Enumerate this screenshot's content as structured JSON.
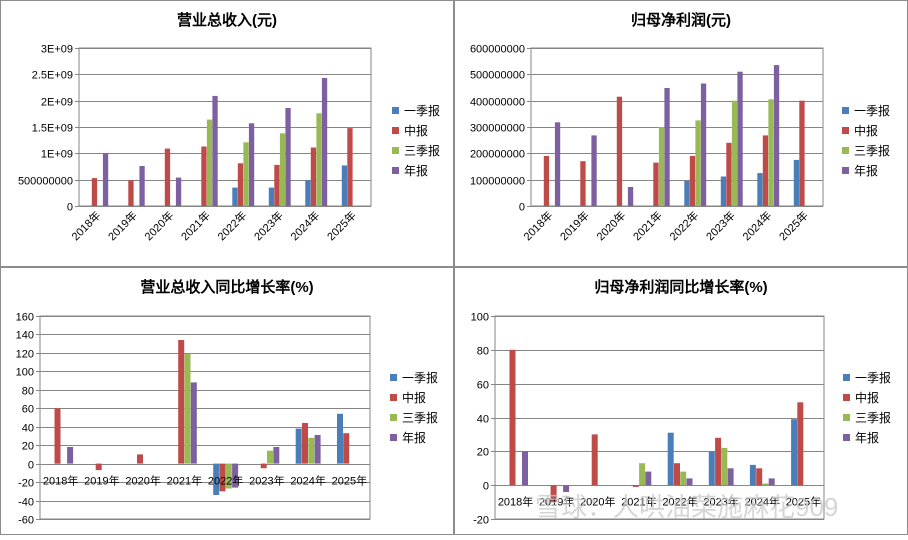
{
  "legend": {
    "labels": [
      "一季报",
      "中报",
      "三季报",
      "年报"
    ],
    "colors": [
      "#4a7ebb",
      "#be4b48",
      "#98b954",
      "#7d60a0"
    ]
  },
  "watermark": "雪球：人哄油菜施麻花909",
  "chart_data": [
    {
      "type": "bar",
      "title": "营业总收入(元)",
      "categories": [
        "2018年",
        "2019年",
        "2020年",
        "2021年",
        "2022年",
        "2023年",
        "2024年",
        "2025年"
      ],
      "yticks": [
        "0",
        "500000000",
        "1E+09",
        "1.5E+09",
        "2E+09",
        "2.5E+09",
        "3E+09"
      ],
      "ylim": [
        0,
        3000000000
      ],
      "series": [
        {
          "name": "一季报",
          "values": [
            null,
            null,
            null,
            null,
            350000000,
            350000000,
            490000000,
            770000000
          ]
        },
        {
          "name": "中报",
          "values": [
            530000000,
            490000000,
            1090000000,
            1130000000,
            810000000,
            780000000,
            1110000000,
            1480000000
          ]
        },
        {
          "name": "三季报",
          "values": [
            null,
            null,
            null,
            1640000000,
            1210000000,
            1380000000,
            1760000000,
            null
          ]
        },
        {
          "name": "年报",
          "values": [
            1000000000,
            760000000,
            540000000,
            2090000000,
            1570000000,
            1860000000,
            2430000000,
            null
          ]
        }
      ]
    },
    {
      "type": "bar",
      "title": "归母净利润(元)",
      "categories": [
        "2018年",
        "2019年",
        "2020年",
        "2021年",
        "2022年",
        "2023年",
        "2024年",
        "2025年"
      ],
      "yticks": [
        "0",
        "100000000",
        "200000000",
        "300000000",
        "400000000",
        "500000000",
        "600000000"
      ],
      "ylim": [
        0,
        600000000
      ],
      "series": [
        {
          "name": "一季报",
          "values": [
            null,
            null,
            null,
            null,
            95000000,
            112000000,
            125000000,
            175000000
          ]
        },
        {
          "name": "中报",
          "values": [
            190000000,
            170000000,
            415000000,
            165000000,
            190000000,
            240000000,
            268000000,
            400000000
          ]
        },
        {
          "name": "三季报",
          "values": [
            null,
            null,
            null,
            300000000,
            325000000,
            400000000,
            405000000,
            null
          ]
        },
        {
          "name": "年报",
          "values": [
            318000000,
            268000000,
            72000000,
            448000000,
            465000000,
            510000000,
            535000000,
            null
          ]
        }
      ]
    },
    {
      "type": "bar",
      "title": "营业总收入同比增长率(%)",
      "categories": [
        "2018年",
        "2019年",
        "2020年",
        "2021年",
        "2022年",
        "2023年",
        "2024年",
        "2025年"
      ],
      "yticks": [
        "-60",
        "-40",
        "-20",
        "0",
        "20",
        "40",
        "60",
        "80",
        "100",
        "120",
        "140",
        "160"
      ],
      "ylim": [
        -60,
        160
      ],
      "series": [
        {
          "name": "一季报",
          "values": [
            null,
            null,
            null,
            null,
            -34,
            null,
            38,
            54
          ]
        },
        {
          "name": "中报",
          "values": [
            60,
            -7,
            10,
            134,
            -30,
            -5,
            44,
            33
          ]
        },
        {
          "name": "三季报",
          "values": [
            null,
            null,
            null,
            119,
            -27,
            14,
            28,
            null
          ]
        },
        {
          "name": "年报",
          "values": [
            18,
            null,
            null,
            88,
            -26,
            18,
            31,
            null
          ]
        }
      ]
    },
    {
      "type": "bar",
      "title": "归母净利润同比增长率(%)",
      "categories": [
        "2018年",
        "2019年",
        "2020年",
        "2021年",
        "2022年",
        "2023年",
        "2024年",
        "2025年"
      ],
      "yticks": [
        "-20",
        "0",
        "20",
        "40",
        "60",
        "80",
        "100"
      ],
      "ylim": [
        -20,
        100
      ],
      "series": [
        {
          "name": "一季报",
          "values": [
            null,
            null,
            null,
            null,
            31,
            20,
            12,
            39
          ]
        },
        {
          "name": "中报",
          "values": [
            80,
            -10,
            30,
            -1,
            13,
            28,
            10,
            49
          ]
        },
        {
          "name": "三季报",
          "values": [
            null,
            null,
            null,
            13,
            8,
            22,
            1,
            null
          ]
        },
        {
          "name": "年报",
          "values": [
            20,
            -4,
            null,
            8,
            4,
            10,
            4,
            null
          ]
        }
      ]
    }
  ]
}
